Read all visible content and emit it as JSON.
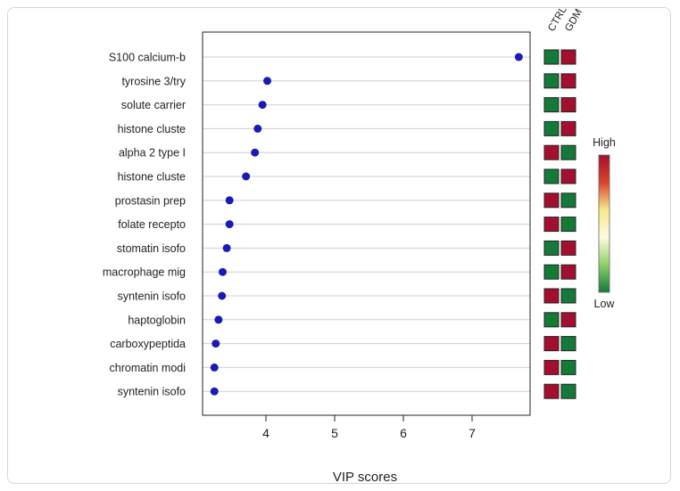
{
  "chart_data": {
    "type": "scatter",
    "xlabel": "VIP scores",
    "ylabel": "",
    "xlim": [
      3.0,
      7.7
    ],
    "xticks": [
      4,
      5,
      6,
      7
    ],
    "grid": "horizontal",
    "categories": [
      "S100 calcium-b",
      "tyrosine 3/try",
      "solute carrier",
      "histone cluste",
      "alpha 2 type I",
      "histone cluste",
      "prostasin prep",
      "folate recepto",
      "stomatin isofo",
      "macrophage mig",
      "syntenin isofo",
      "haptoglobin",
      "carboxypeptida",
      "chromatin modi",
      "syntenin isofo"
    ],
    "values": [
      7.68,
      4.02,
      3.95,
      3.88,
      3.84,
      3.71,
      3.47,
      3.47,
      3.43,
      3.37,
      3.36,
      3.31,
      3.27,
      3.25,
      3.25
    ],
    "point_color": "#1a1ab8",
    "heatmap": {
      "columns": [
        "CTRL",
        "GDM"
      ],
      "rows": [
        [
          "low",
          "high"
        ],
        [
          "low",
          "high"
        ],
        [
          "low",
          "high"
        ],
        [
          "low",
          "high"
        ],
        [
          "high",
          "low"
        ],
        [
          "low",
          "high"
        ],
        [
          "high",
          "low"
        ],
        [
          "high",
          "low"
        ],
        [
          "low",
          "high"
        ],
        [
          "low",
          "high"
        ],
        [
          "high",
          "low"
        ],
        [
          "low",
          "high"
        ],
        [
          "high",
          "low"
        ],
        [
          "high",
          "low"
        ],
        [
          "high",
          "low"
        ]
      ],
      "colors": {
        "high": "#a50f2e",
        "low": "#137a3a"
      }
    },
    "colorbar": {
      "high_label": "High",
      "low_label": "Low",
      "gradient": [
        "#a50f2e",
        "#d9452a",
        "#f6e98a",
        "#fffbe0",
        "#8fcf6a",
        "#137a3a"
      ]
    }
  }
}
